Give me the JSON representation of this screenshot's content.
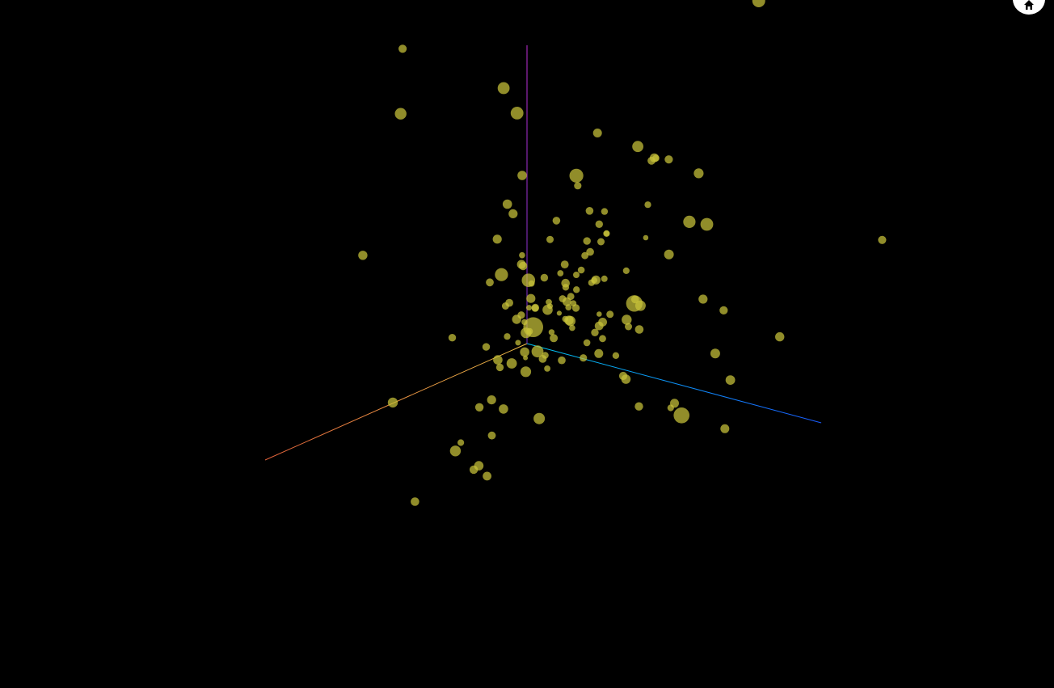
{
  "app": {
    "background": "#000000",
    "home_button": {
      "icon": "home-icon",
      "color": "#ffffff"
    }
  },
  "chart_data": {
    "type": "scatter",
    "subtype": "3d-bubble",
    "title": "",
    "xlabel": "",
    "ylabel": "",
    "zlabel": "",
    "legend": "none",
    "grid": false,
    "point_color": "#c9c33a",
    "point_opacity": 0.72,
    "axes": {
      "x": {
        "color_start": "#f5c24a",
        "color_end": "#e0603a"
      },
      "y": {
        "color_start": "#00c8f0",
        "color_end": "#1a5cff"
      },
      "z": {
        "color_start": "#7a33cc",
        "color_end": "#c030d8"
      }
    },
    "series": [
      {
        "points": [
          [
            0.87,
            1.11,
            1.76,
            8.6
          ],
          [
            -2.5,
            -0.65,
            1.15,
            8.0
          ],
          [
            -1.1,
            -0.5,
            0.85,
            5.5
          ],
          [
            -1.79,
            -0.84,
            0.4,
            6.9
          ],
          [
            -1.86,
            -0.79,
            0.31,
            5.5
          ],
          [
            -0.23,
            0.76,
            0.71,
            6.0
          ],
          [
            0.56,
            1.27,
            0.81,
            6.5
          ],
          [
            1.11,
            0.48,
            0.6,
            4.7
          ],
          [
            0.11,
            0.06,
            0.59,
            5.5
          ],
          [
            -0.8,
            -0.67,
            -0.38,
            12.3
          ],
          [
            -1.2,
            0.65,
            -0.25,
            5.7
          ],
          [
            0.66,
            1.59,
            0.28,
            5.5
          ],
          [
            -0.84,
            -0.95,
            0.12,
            5.6
          ],
          [
            -0.94,
            -0.58,
            0.01,
            4.9
          ],
          [
            -0.3,
            1.07,
            0.39,
            5.1
          ],
          [
            -0.26,
            0.04,
            0.19,
            5.4
          ],
          [
            -0.6,
            1.88,
            0.96,
            5.1
          ],
          [
            -0.15,
            0.26,
            0.6,
            4.4
          ],
          [
            -0.98,
            0.35,
            0.51,
            7.9
          ],
          [
            0.29,
            0.54,
            0.5,
            3.9
          ],
          [
            0.57,
            1.89,
            0.48,
            5.9
          ],
          [
            -0.56,
            -0.13,
            0.24,
            4.3
          ],
          [
            -0.95,
            -0.94,
            0.25,
            5.6
          ],
          [
            -0.42,
            -0.52,
            -0.05,
            4.5
          ],
          [
            0.15,
            0.24,
            0.02,
            4.9
          ],
          [
            -0.76,
            -0.85,
            -0.06,
            8.1
          ],
          [
            -2.07,
            -1.91,
            0.23,
            7.9
          ],
          [
            -0.73,
            -0.45,
            0.42,
            4.8
          ],
          [
            -0.93,
            -0.34,
            -0.52,
            5.5
          ],
          [
            0.53,
            -0.29,
            -0.93,
            5.3
          ],
          [
            -0.51,
            0.65,
            0.79,
            7.6
          ],
          [
            -0.47,
            0.02,
            0.23,
            4.1
          ],
          [
            0.2,
            0.36,
            0.21,
            5.0
          ],
          [
            -0.14,
            0.55,
            0.58,
            4.1
          ],
          [
            1.1,
            1.74,
            0.47,
            5.2
          ],
          [
            -0.76,
            0.2,
            1.0,
            4.3
          ],
          [
            -1.9,
            -1.85,
            0.48,
            7.4
          ],
          [
            -0.75,
            0.01,
            -0.13,
            6.2
          ],
          [
            1.96,
            2.03,
            1.46,
            5.8
          ],
          [
            -0.98,
            -1.15,
            -0.71,
            4.7
          ],
          [
            -0.02,
            -0.93,
            -0.65,
            6.2
          ],
          [
            0.52,
            0.87,
            0.44,
            4.3
          ],
          [
            1.05,
            0.8,
            0.67,
            4.1
          ],
          [
            0.15,
            1.33,
            0.71,
            5.6
          ],
          [
            -0.6,
            0.03,
            -0.03,
            4.5
          ],
          [
            1.22,
            -0.03,
            1.06,
            5.7
          ],
          [
            0.07,
            0.47,
            0.84,
            4.7
          ],
          [
            -0.72,
            -0.1,
            0.43,
            4.1
          ],
          [
            -0.21,
            0.98,
            1.32,
            6.1
          ],
          [
            0.24,
            0.24,
            0.46,
            5.6
          ],
          [
            -0.27,
            0.25,
            0.08,
            5.4
          ],
          [
            -0.13,
            -0.06,
            0.17,
            4.5
          ],
          [
            -0.58,
            -0.55,
            0.22,
            3.8
          ],
          [
            -1.68,
            -1.07,
            -0.05,
            4.8
          ],
          [
            -0.43,
            -0.3,
            -0.75,
            7.0
          ],
          [
            0.41,
            0.68,
            0.61,
            3.9
          ],
          [
            -0.4,
            -0.02,
            0.2,
            4.2
          ],
          [
            -0.56,
            -0.03,
            0.2,
            5.6
          ],
          [
            -0.76,
            -0.22,
            0.07,
            3.9
          ],
          [
            -0.39,
            0.46,
            0.68,
            3.3
          ],
          [
            -0.07,
            -0.39,
            -0.95,
            5.8
          ],
          [
            -0.93,
            -0.71,
            -0.11,
            4.7
          ],
          [
            0.18,
            0.17,
            0.54,
            8.3
          ],
          [
            -0.2,
            0.12,
            0.27,
            4.4
          ],
          [
            -0.21,
            0.04,
            0.4,
            3.9
          ],
          [
            0.39,
            0.73,
            0.25,
            4.6
          ],
          [
            -0.24,
            -0.22,
            -0.08,
            6.6
          ],
          [
            0.88,
            1.76,
            0.38,
            4.1
          ],
          [
            -1.33,
            -1.21,
            -0.32,
            5.2
          ],
          [
            -1.5,
            -0.99,
            0.21,
            4.6
          ],
          [
            1.0,
            2.17,
            0.9,
            6.0
          ],
          [
            -0.15,
            -0.12,
            0.15,
            3.5
          ],
          [
            -0.35,
            0.51,
            0.93,
            4.1
          ],
          [
            0.15,
            0.19,
            0.35,
            4.7
          ],
          [
            -0.37,
            -0.11,
            0.03,
            3.1
          ],
          [
            -0.67,
            -0.7,
            -0.58,
            6.4
          ],
          [
            0.75,
            1.34,
            0.41,
            5.8
          ],
          [
            -0.48,
            -0.26,
            -0.18,
            3.7
          ],
          [
            -0.17,
            -0.08,
            -0.14,
            7.4
          ],
          [
            -0.15,
            -0.01,
            -0.14,
            4.3
          ],
          [
            -1.03,
            -0.39,
            0.38,
            4.2
          ],
          [
            0.25,
            -0.03,
            0.5,
            4.9
          ],
          [
            0.08,
            0.01,
            0.04,
            3.5
          ],
          [
            -0.37,
            -0.34,
            -0.33,
            3.0
          ],
          [
            -0.31,
            0.25,
            0.38,
            4.0
          ],
          [
            -1.31,
            -0.32,
            0.63,
            4.9
          ],
          [
            -0.19,
            -0.41,
            -0.56,
            5.6
          ],
          [
            -0.11,
            0.04,
            -0.2,
            3.9
          ],
          [
            -0.4,
            -0.12,
            -0.3,
            4.8
          ],
          [
            -0.35,
            -0.32,
            -0.41,
            6.6
          ],
          [
            -0.64,
            -0.69,
            -0.16,
            4.9
          ],
          [
            -0.67,
            -0.44,
            0.32,
            4.5
          ],
          [
            -0.43,
            -0.4,
            -0.13,
            3.7
          ],
          [
            -0.59,
            -0.23,
            -0.14,
            6.3
          ],
          [
            0.09,
            0.22,
            0.32,
            6.3
          ],
          [
            -0.25,
            0.28,
            0.66,
            4.5
          ],
          [
            0.26,
            0.38,
            0.48,
            3.9
          ],
          [
            0.67,
            1.2,
            0.5,
            4.2
          ],
          [
            -0.27,
            -0.4,
            -0.65,
            5.8
          ],
          [
            -0.51,
            -0.47,
            -0.38,
            5.8
          ],
          [
            0.02,
            0.35,
            0.34,
            4.7
          ],
          [
            -0.72,
            -0.68,
            -0.27,
            4.6
          ],
          [
            -1.08,
            -0.5,
            -0.48,
            4.7
          ],
          [
            0.06,
            0.21,
            0.33,
            3.5
          ],
          [
            -0.62,
            -0.75,
            -0.55,
            5.8
          ],
          [
            0.19,
            0.2,
            0.53,
            3.9
          ],
          [
            0.19,
            0.66,
            1.05,
            4.7
          ],
          [
            -0.57,
            -0.49,
            -0.27,
            4.1
          ],
          [
            0.67,
            1.11,
            0.59,
            4.4
          ],
          [
            -0.53,
            0.07,
            0.55,
            3.6
          ],
          [
            -0.71,
            -0.37,
            0.03,
            5.3
          ],
          [
            -0.09,
            -0.53,
            -0.84,
            4.1
          ],
          [
            -0.06,
            0.21,
            0.41,
            4.2
          ],
          [
            -0.82,
            -0.8,
            -0.37,
            5.7
          ],
          [
            0.65,
            -0.28,
            1.72,
            7.2
          ],
          [
            0.22,
            -0.65,
            1.89,
            5.1
          ],
          [
            0.03,
            -0.46,
            -0.83,
            6.7
          ],
          [
            -0.71,
            -0.39,
            -0.08,
            4.4
          ],
          [
            -0.13,
            -0.3,
            -0.29,
            4.7
          ],
          [
            -0.49,
            -0.76,
            -0.82,
            5.2
          ],
          [
            0.09,
            0.34,
            0.29,
            3.8
          ],
          [
            0.08,
            -0.2,
            -0.91,
            5.4
          ],
          [
            0.34,
            0.61,
            0.4,
            3.8
          ],
          [
            -0.11,
            -0.46,
            -1.01,
            5.2
          ],
          [
            -0.08,
            -0.31,
            -0.73,
            4.9
          ],
          [
            0.18,
            0.85,
            0.41,
            4.5
          ],
          [
            -1.85,
            -1.78,
            -0.26,
            5.8
          ],
          [
            -0.06,
            0.71,
            0.26,
            5.3
          ],
          [
            -1.24,
            -0.45,
            -0.82,
            5.1
          ],
          [
            0.72,
            1.07,
            1.18,
            4.8
          ],
          [
            0.37,
            0.82,
            0.56,
            3.3
          ],
          [
            -2.12,
            -1.92,
            -0.21,
            5.8
          ],
          [
            -0.05,
            0.69,
            0.46,
            4.8
          ],
          [
            -0.24,
            0.75,
            1.34,
            5.1
          ],
          [
            1.28,
            2.19,
            0.6,
            9.8
          ],
          [
            1.0,
            1.62,
            1.09,
            10.2
          ],
          [
            0.86,
            1.28,
            0.82,
            5.4
          ],
          [
            0.32,
            0.62,
            0.75,
            4.0
          ],
          [
            0.5,
            1.79,
            0.1,
            5.5
          ]
        ]
      }
    ]
  }
}
